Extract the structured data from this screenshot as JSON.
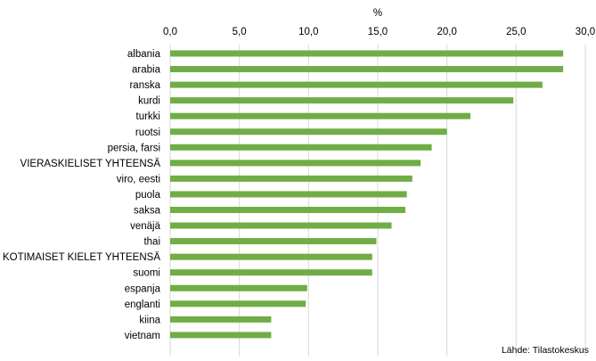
{
  "chart_data": {
    "type": "bar",
    "orientation": "horizontal",
    "title": "",
    "xlabel": "%",
    "ylabel": "",
    "xlim": [
      0,
      30
    ],
    "x_ticks": [
      "0,0",
      "5,0",
      "10,0",
      "15,0",
      "20,0",
      "25,0",
      "30,0"
    ],
    "x_tick_values": [
      0,
      5,
      10,
      15,
      20,
      25,
      30
    ],
    "axis_position": "top",
    "grid": "vertical",
    "bar_color": "#70AD47",
    "grid_color": "#d9d9d9",
    "categories": [
      "albania",
      "arabia",
      "ranska",
      "kurdi",
      "turkki",
      "ruotsi",
      "persia, farsi",
      "VIERASKIELISET YHTEENSÄ",
      "viro, eesti",
      "puola",
      "saksa",
      "venäjä",
      "thai",
      "KOTIMAISET KIELET YHTEENSÄ",
      "suomi",
      "espanja",
      "englanti",
      "kiina",
      "vietnam"
    ],
    "values": [
      28.4,
      28.4,
      26.9,
      24.8,
      21.7,
      20.0,
      18.9,
      18.1,
      17.5,
      17.1,
      17.0,
      16.0,
      14.9,
      14.6,
      14.6,
      9.9,
      9.8,
      7.3,
      7.3
    ]
  },
  "source_note": "Lähde: Tilastokeskus"
}
